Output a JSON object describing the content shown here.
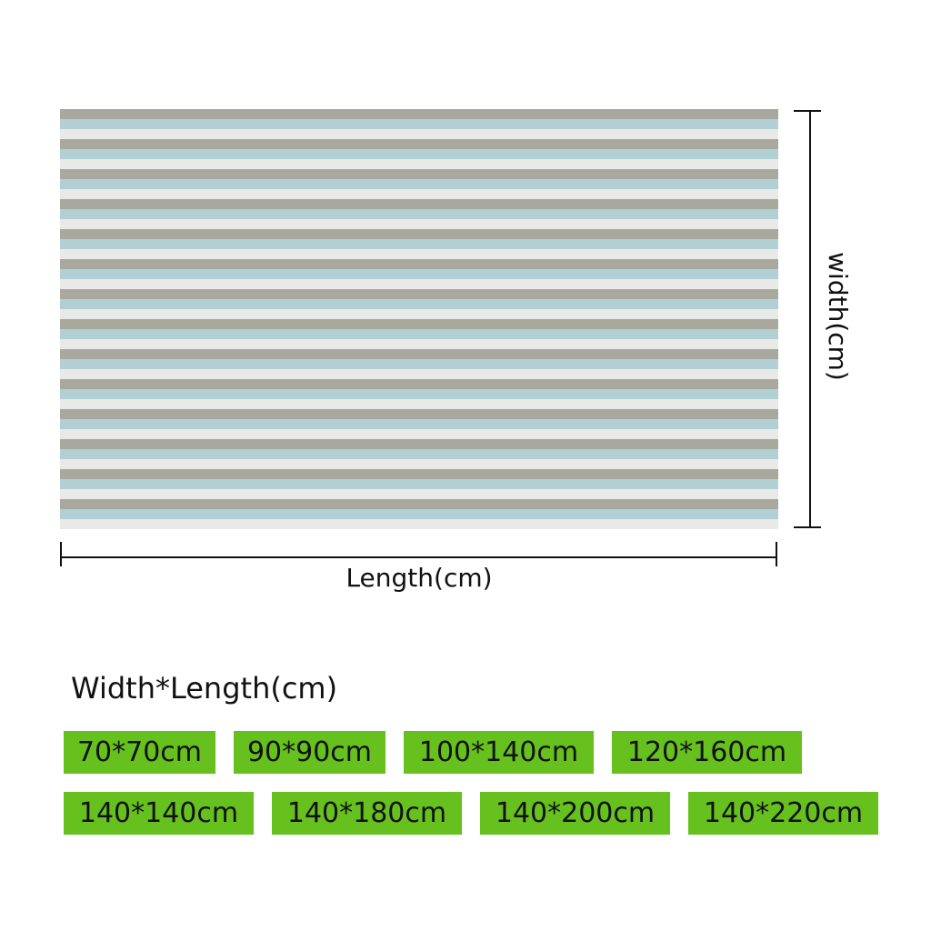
{
  "dimensions": {
    "vertical_label": "width(cm)",
    "horizontal_label": "Length(cm)"
  },
  "size_table": {
    "heading": "Width*Length(cm)",
    "sizes": [
      "70*70cm",
      "90*90cm",
      "100*140cm",
      "120*160cm",
      "140*140cm",
      "140*180cm",
      "140*200cm",
      "140*220cm"
    ]
  }
}
